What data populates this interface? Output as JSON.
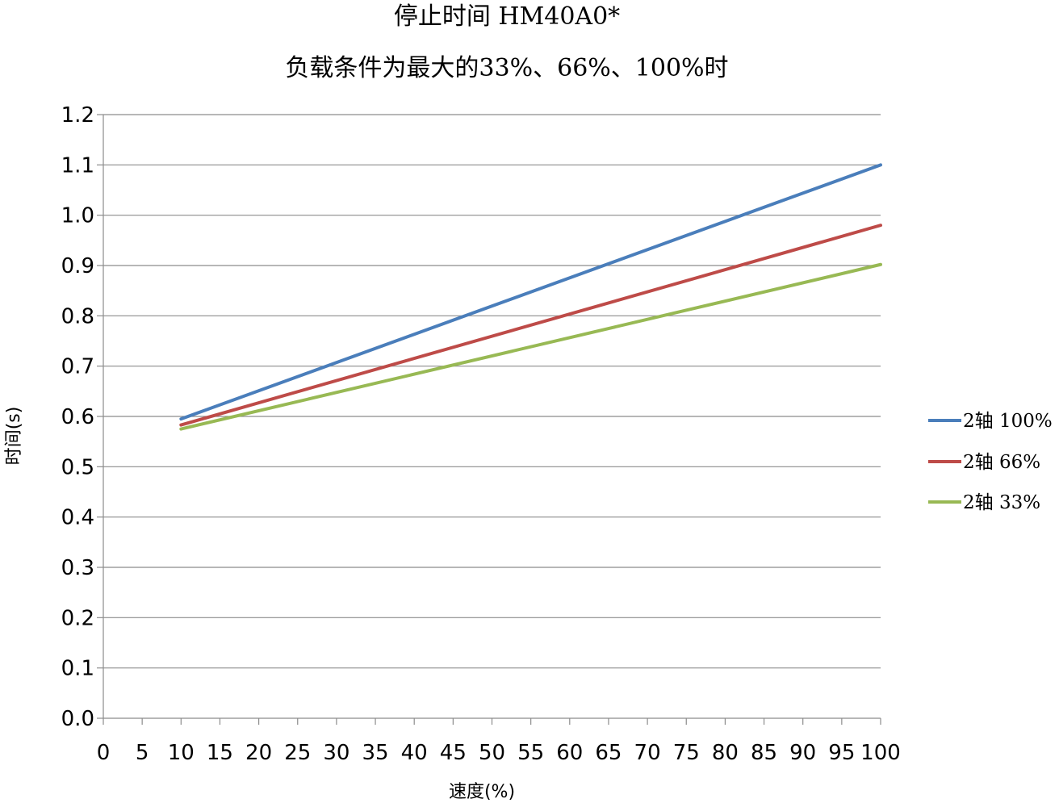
{
  "chart_data": {
    "type": "line",
    "title": "停止时间 HM40A0*",
    "subtitle": "负载条件为最大的33%、66%、100%时",
    "xlabel": "速度(%)",
    "ylabel": "时间(s)",
    "xlim": [
      0,
      100
    ],
    "ylim": [
      0.0,
      1.2
    ],
    "x_ticks": [
      "0",
      "5",
      "10",
      "15",
      "20",
      "25",
      "30",
      "35",
      "40",
      "45",
      "50",
      "55",
      "60",
      "65",
      "70",
      "75",
      "80",
      "85",
      "90",
      "95",
      "100"
    ],
    "y_ticks": [
      "0.0",
      "0.1",
      "0.2",
      "0.3",
      "0.4",
      "0.5",
      "0.6",
      "0.7",
      "0.8",
      "0.9",
      "1.0",
      "1.1",
      "1.2"
    ],
    "grid": "horizontal",
    "legend_position": "right",
    "x": [
      10,
      100
    ],
    "series": [
      {
        "name": "2轴 100%",
        "color": "#4a7ebb",
        "values": [
          0.595,
          1.1
        ]
      },
      {
        "name": "2轴 66%",
        "color": "#be4b48",
        "values": [
          0.583,
          0.98
        ]
      },
      {
        "name": "2轴 33%",
        "color": "#98b954",
        "values": [
          0.575,
          0.902
        ]
      }
    ]
  }
}
